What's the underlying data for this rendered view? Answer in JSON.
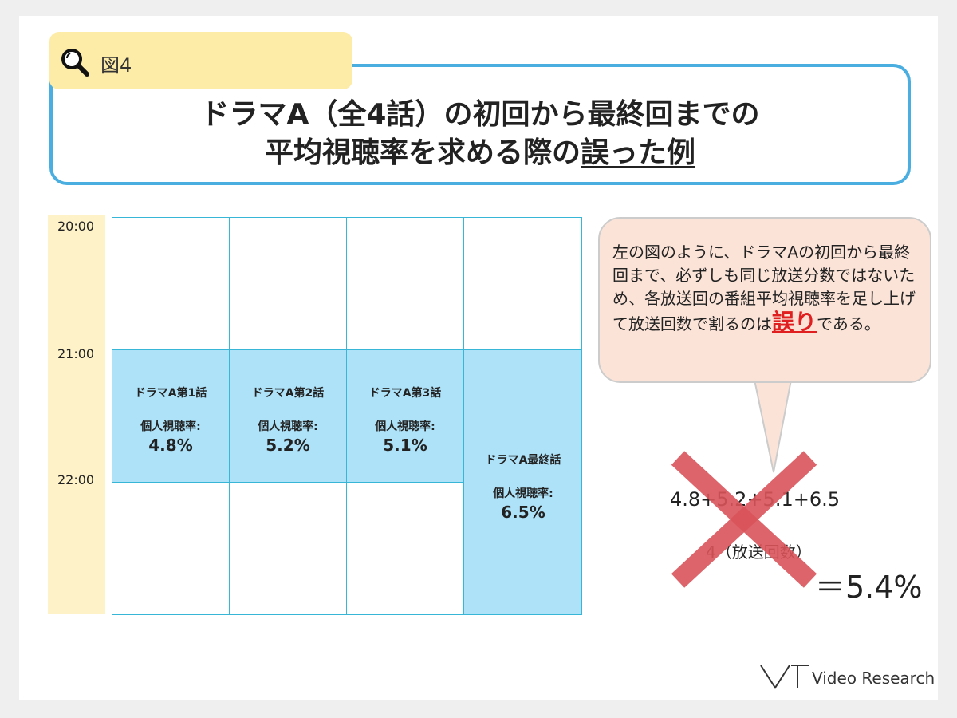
{
  "header": {
    "fig_label": "図4",
    "title_line1": "ドラマA（全4話）の初回から最終回までの",
    "title_line2_a": "平均視聴率を求める際の",
    "title_line2_b": "誤った例"
  },
  "timeline": {
    "times": [
      "20:00",
      "21:00",
      "22:00"
    ]
  },
  "episodes": [
    {
      "name": "ドラマA第1話",
      "rating_label": "個人視聴率:",
      "rating": "4.8%",
      "rating_value": 4.8
    },
    {
      "name": "ドラマA第2話",
      "rating_label": "個人視聴率:",
      "rating": "5.2%",
      "rating_value": 5.2
    },
    {
      "name": "ドラマA第3話",
      "rating_label": "個人視聴率:",
      "rating": "5.1%",
      "rating_value": 5.1
    },
    {
      "name": "ドラマA最終話",
      "rating_label": "個人視聴率:",
      "rating": "6.5%",
      "rating_value": 6.5
    }
  ],
  "bubble": {
    "text_main": "左の図のように、ドラマAの初回から最終回まで、必ずしも同じ放送分数ではないため、各放送回の番組平均視聴率を足し上げて放送回数で割るのは",
    "emphasis": "誤り",
    "text_tail": "である。"
  },
  "formula": {
    "numerator": "4.8+5.2+5.1+6.5",
    "denominator": "4（放送回数）",
    "result": "＝5.4%"
  },
  "logo": {
    "text": "Video Research"
  },
  "colors": {
    "accent_blue": "#4aaee0",
    "cell_blue": "#aee2f8",
    "tab_yellow": "#fdeba8",
    "error_red": "#e02020",
    "cross_red": "#d9545a"
  }
}
